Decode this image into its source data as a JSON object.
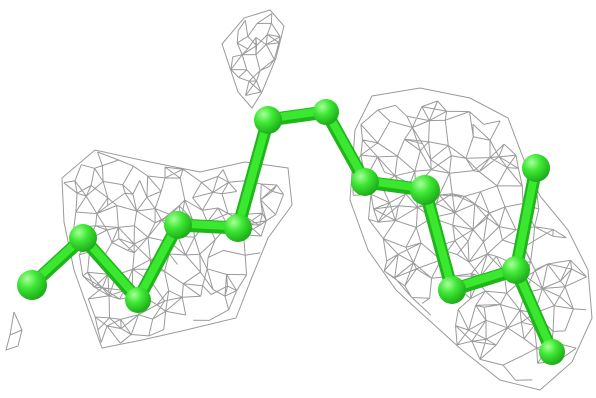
{
  "image": {
    "background": "#ffffff",
    "mesh_color": "#9a9a9a",
    "molecule_color": "#39e82f",
    "molecule_highlight": "#8cff7d",
    "molecule_shadow": "#1fb51b"
  }
}
